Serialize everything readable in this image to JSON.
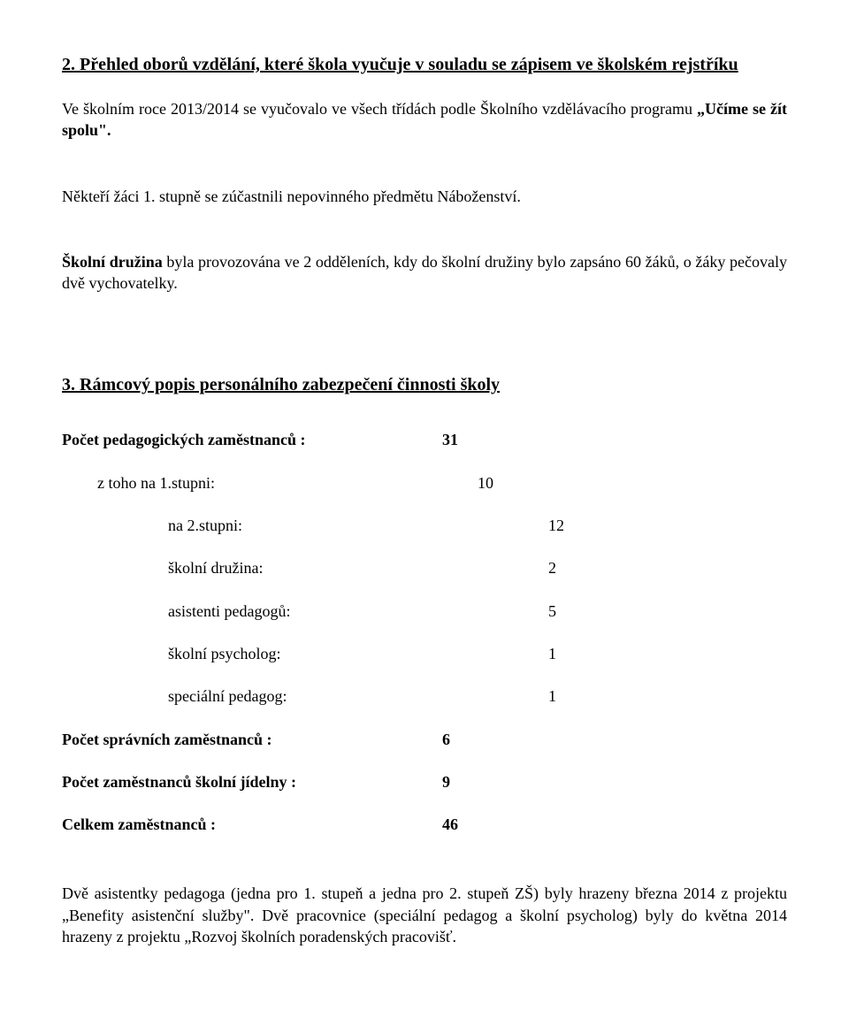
{
  "section2": {
    "heading": "2. Přehled oborů vzdělání, které škola vyučuje v souladu se zápisem ve školském rejstříku",
    "para1_pre": "Ve školním roce 2013/2014 se vyučovalo ve všech třídách podle   Školního vzdělávacího programu ",
    "para1_bold": "„Učíme  se  žít  spolu\".",
    "para2": "Někteří žáci 1. stupně se zúčastnili nepovinného předmětu Náboženství.",
    "para3_bold": "Školní družina",
    "para3_rest": " byla provozována ve 2 odděleních, kdy do školní družiny bylo zapsáno 60 žáků, o žáky pečovaly dvě vychovatelky."
  },
  "section3": {
    "heading": "3.  Rámcový popis personálního zabezpečení činnosti školy",
    "rows": [
      {
        "label": "Počet pedagogických zaměstnanců :",
        "value": "31",
        "bold": true,
        "indent": 0
      },
      {
        "label": "z toho  na 1.stupni:",
        "value": "10",
        "bold": false,
        "indent": 1
      },
      {
        "label": "na 2.stupni:",
        "value": "12",
        "bold": false,
        "indent": 2
      },
      {
        "label": "školní družina:",
        "value": "2",
        "bold": false,
        "indent": 2
      },
      {
        "label": "asistenti pedagogů:",
        "value": "5",
        "bold": false,
        "indent": 2
      },
      {
        "label": "školní psycholog:",
        "value": "1",
        "bold": false,
        "indent": 2
      },
      {
        "label": "speciální pedagog:",
        "value": "1",
        "bold": false,
        "indent": 2
      },
      {
        "label": "Počet správních zaměstnanců :",
        "value": "6",
        "bold": true,
        "indent": 0
      },
      {
        "label": "Počet zaměstnanců školní jídelny :",
        "value": "9",
        "bold": true,
        "indent": 0
      },
      {
        "label": "Celkem zaměstnanců :",
        "value": "46",
        "bold": true,
        "indent": 0
      }
    ],
    "footer": "Dvě asistentky pedagoga (jedna pro 1. stupeň a jedna pro 2. stupeň ZŠ) byly hrazeny března 2014 z projektu „Benefity asistenční služby\". Dvě pracovnice (speciální pedagog a školní psycholog) byly do května 2014 hrazeny z projektu „Rozvoj školních poradenských pracovišť."
  }
}
